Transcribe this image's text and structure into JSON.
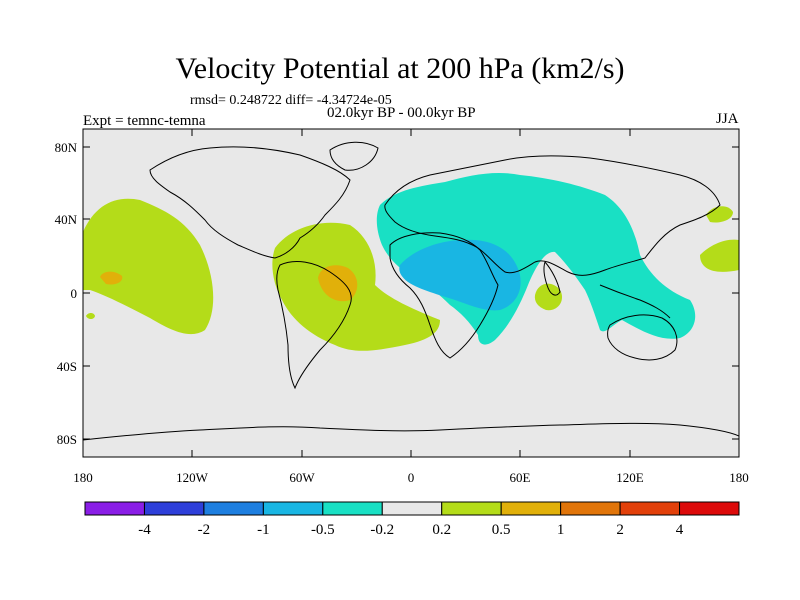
{
  "title": "Velocity Potential at 200 hPa (km2/s)",
  "stats_line": "rmsd= 0.248722 diff= -4.34724e-05",
  "expt_line": "Expt = temnc-temna",
  "period_line": "02.0kyr BP - 00.0kyr BP",
  "season": "JJA",
  "map": {
    "lat_ticks": [
      "80N",
      "40N",
      "0",
      "40S",
      "80S"
    ],
    "lon_ticks": [
      "180",
      "120W",
      "60W",
      "0",
      "60E",
      "120E",
      "180"
    ],
    "ocean_color": "#e8e8e8"
  },
  "colorbar": {
    "labels": [
      "-4",
      "-2",
      "-1",
      "-0.5",
      "-0.2",
      "0.2",
      "0.5",
      "1",
      "2",
      "4"
    ],
    "colors": [
      "#8a1ee6",
      "#2e3fd9",
      "#1e7fe0",
      "#19b6e3",
      "#19e0c4",
      "#e8e8e8",
      "#b4dc19",
      "#e1b00a",
      "#e1750a",
      "#e2400a",
      "#dc0a0a"
    ]
  }
}
